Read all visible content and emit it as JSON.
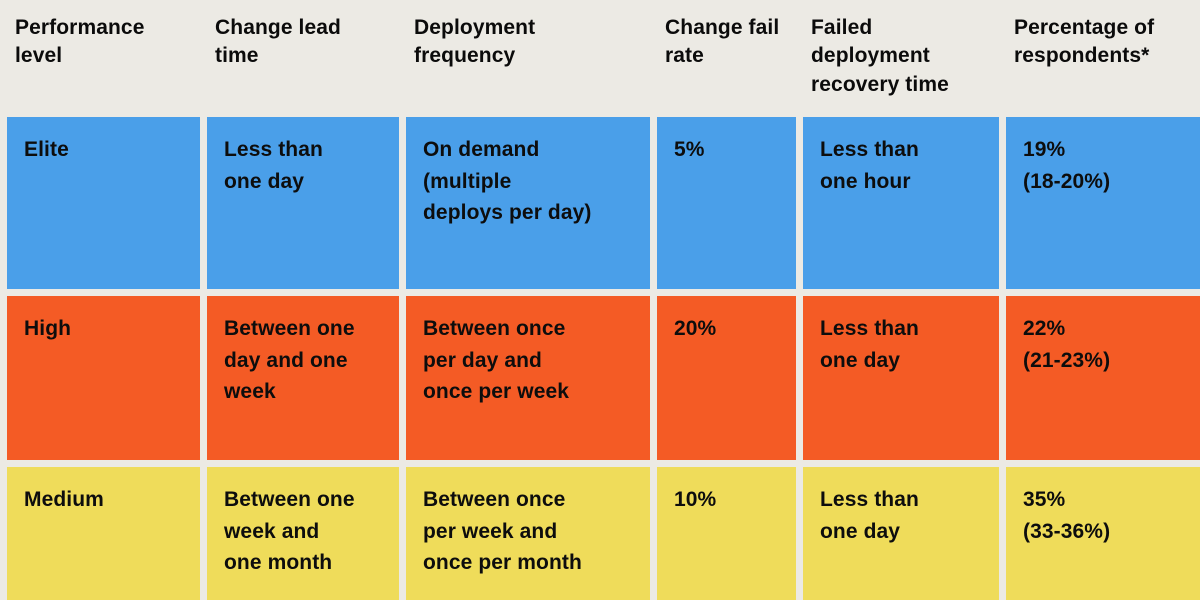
{
  "colors": {
    "background": "#ECEAE4",
    "elite_row": "#4A9FE9",
    "high_row": "#F45B25",
    "medium_row": "#EFDC5A",
    "text": "#0B0B0B"
  },
  "table": {
    "columns": [
      {
        "label": "Performance\nlevel"
      },
      {
        "label": "Change lead\ntime"
      },
      {
        "label": "Deployment\nfrequency"
      },
      {
        "label": "Change fail\nrate"
      },
      {
        "label": "Failed\ndeployment\nrecovery time"
      },
      {
        "label": "Percentage of\nrespondents*"
      }
    ],
    "rows": [
      {
        "level": "Elite",
        "color": "#4A9FE9",
        "cells": [
          "Elite",
          "Less than\none day",
          "On demand\n(multiple\ndeploys per day)",
          "5%",
          "Less than\none hour",
          "19%\n(18-20%)"
        ]
      },
      {
        "level": "High",
        "color": "#F45B25",
        "cells": [
          "High",
          "Between one\nday and one\nweek",
          "Between once\nper day and\nonce per week",
          "20%",
          "Less than\none day",
          "22%\n(21-23%)"
        ]
      },
      {
        "level": "Medium",
        "color": "#EFDC5A",
        "cells": [
          "Medium",
          "Between one\nweek and\none month",
          "Between once\nper week and\nonce per month",
          "10%",
          "Less than\none day",
          "35%\n(33-36%)"
        ]
      }
    ]
  },
  "chart_data": {
    "type": "table",
    "title": "",
    "columns": [
      "Performance level",
      "Change lead time",
      "Deployment frequency",
      "Change fail rate",
      "Failed deployment recovery time",
      "Percentage of respondents*"
    ],
    "rows": [
      [
        "Elite",
        "Less than one day",
        "On demand (multiple deploys per day)",
        "5%",
        "Less than one hour",
        "19% (18-20%)"
      ],
      [
        "High",
        "Between one day and one week",
        "Between once per day and once per week",
        "20%",
        "Less than one day",
        "22% (21-23%)"
      ],
      [
        "Medium",
        "Between one week and one month",
        "Between once per week and once per month",
        "10%",
        "Less than one day",
        "35% (33-36%)"
      ]
    ],
    "row_colors": [
      "#4A9FE9",
      "#F45B25",
      "#EFDC5A"
    ],
    "legend_position": "none"
  }
}
